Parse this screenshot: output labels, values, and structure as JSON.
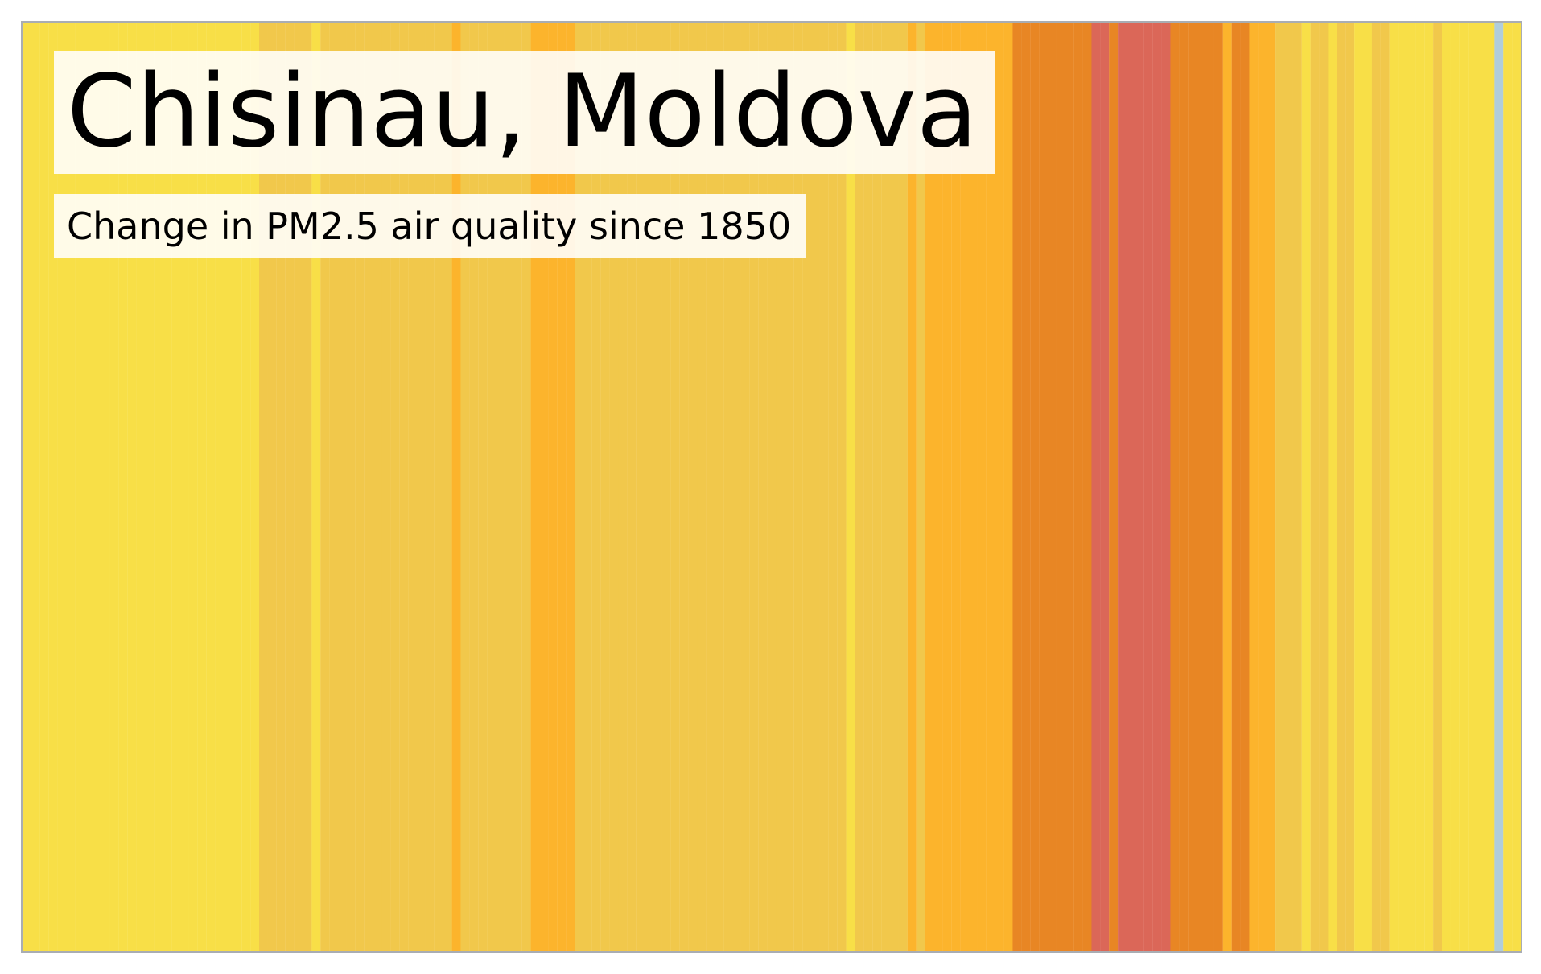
{
  "chart_data": {
    "type": "heatmap",
    "title": "Chisinau, Moldova",
    "subtitle": "Change in PM2.5 air quality since 1850",
    "x_start": 1850,
    "x_end": 2021,
    "grid": false,
    "legend": "none",
    "palette": {
      "1": "#f8df47",
      "2": "#f1c84b",
      "3": "#fcb42c",
      "4": "#e88624",
      "5": "#db6758",
      "0": "#b0cddb"
    },
    "levels": [
      1,
      1,
      1,
      1,
      1,
      1,
      1,
      1,
      1,
      1,
      1,
      1,
      1,
      1,
      1,
      1,
      1,
      1,
      1,
      1,
      1,
      1,
      1,
      1,
      1,
      1,
      1,
      2,
      2,
      2,
      2,
      2,
      2,
      1,
      2,
      2,
      2,
      2,
      2,
      2,
      2,
      2,
      2,
      2,
      2,
      2,
      2,
      2,
      2,
      3,
      2,
      2,
      2,
      2,
      2,
      2,
      2,
      2,
      3,
      3,
      3,
      3,
      3,
      2,
      2,
      2,
      2,
      2,
      2,
      2,
      2,
      2,
      2,
      2,
      2,
      2,
      2,
      2,
      2,
      2,
      2,
      2,
      2,
      2,
      2,
      2,
      2,
      2,
      2,
      2,
      2,
      2,
      2,
      2,
      1,
      2,
      2,
      2,
      2,
      2,
      2,
      3,
      2,
      3,
      3,
      3,
      3,
      3,
      3,
      3,
      3,
      3,
      3,
      4,
      4,
      4,
      4,
      4,
      4,
      4,
      4,
      4,
      5,
      5,
      4,
      5,
      5,
      5,
      5,
      5,
      5,
      4,
      4,
      4,
      4,
      4,
      4,
      3,
      4,
      4,
      3,
      3,
      3,
      2,
      2,
      2,
      1,
      2,
      2,
      1,
      2,
      2,
      1,
      1,
      2,
      2,
      1,
      1,
      1,
      1,
      1,
      2,
      1,
      1,
      1,
      1,
      1,
      1,
      0,
      1,
      1
    ]
  }
}
